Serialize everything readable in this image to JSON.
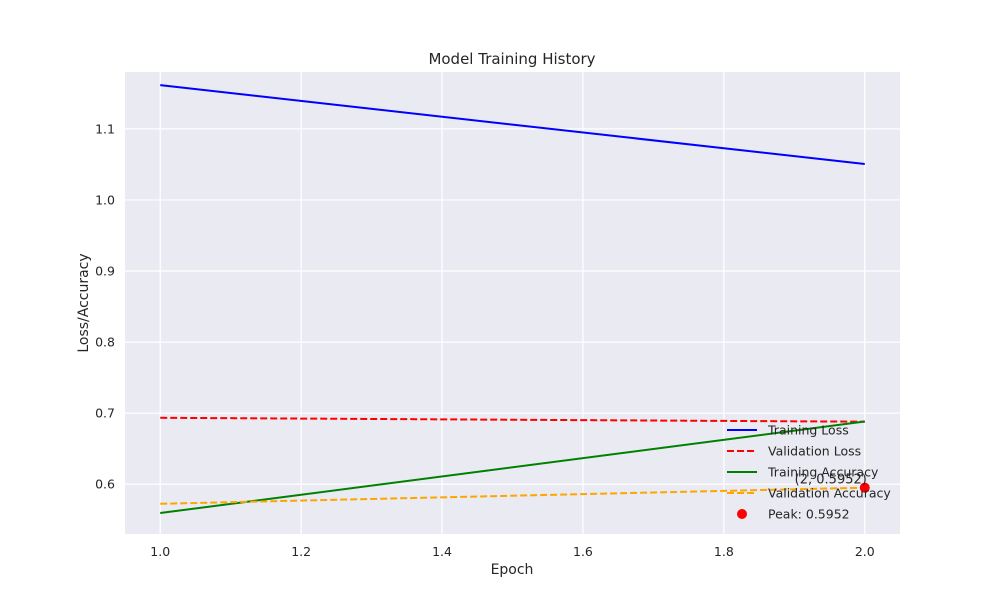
{
  "chart_data": {
    "type": "line",
    "title": "Model Training History",
    "xlabel": "Epoch",
    "ylabel": "Loss/Accuracy",
    "xlim": [
      0.95,
      2.05
    ],
    "ylim": [
      0.53,
      1.18
    ],
    "grid": true,
    "x": [
      1.0,
      2.0
    ],
    "x_ticks": [
      1.0,
      1.2,
      1.4,
      1.6,
      1.8,
      2.0
    ],
    "x_tick_labels": [
      "1.0",
      "1.2",
      "1.4",
      "1.6",
      "1.8",
      "2.0"
    ],
    "y_ticks": [
      0.6,
      0.7,
      0.8,
      0.9,
      1.0,
      1.1
    ],
    "y_tick_labels": [
      "0.6",
      "0.7",
      "0.8",
      "0.9",
      "1.0",
      "1.1"
    ],
    "series": [
      {
        "name": "Training Loss",
        "values": [
          1.1615,
          1.0505
        ],
        "color": "#0000ff",
        "style": "solid"
      },
      {
        "name": "Validation Loss",
        "values": [
          0.6935,
          0.688
        ],
        "color": "#ff0000",
        "style": "dashed"
      },
      {
        "name": "Training Accuracy",
        "values": [
          0.5595,
          0.6883
        ],
        "color": "#008000",
        "style": "solid"
      },
      {
        "name": "Validation Accuracy",
        "values": [
          0.5725,
          0.5952
        ],
        "color": "#ffa500",
        "style": "dashed"
      }
    ],
    "peak": {
      "label": "Peak: 0.5952",
      "x": 2.0,
      "y": 0.5952,
      "color": "#ff0000"
    },
    "annotation": {
      "text": "(2, 0.5952)"
    },
    "legend_position": "lower right"
  }
}
